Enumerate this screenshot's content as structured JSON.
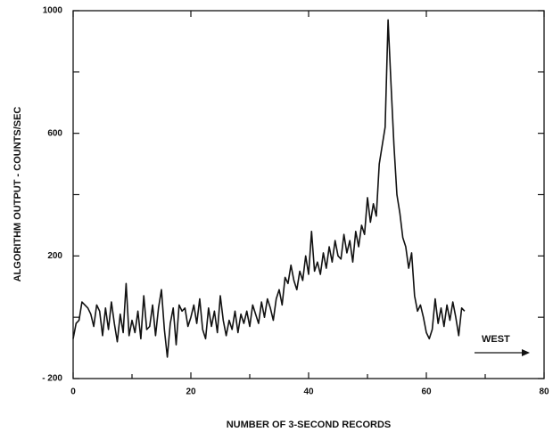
{
  "chart_data": {
    "type": "line",
    "xlabel": "NUMBER OF 3-SECOND RECORDS",
    "ylabel": "ALGORITHM OUTPUT - COUNTS/SEC",
    "annotation": "WEST",
    "xlim": [
      0,
      80
    ],
    "xticks": [
      0,
      20,
      40,
      60,
      80
    ],
    "xminorticks": [
      10,
      30,
      50,
      70
    ],
    "ylim": [
      -200,
      1000
    ],
    "yticks": [
      {
        "value": -200,
        "label": "- 200"
      },
      200,
      600,
      1000
    ],
    "yminorticks": [
      0,
      400,
      800
    ],
    "color": "#111111",
    "x": [
      0,
      0.5,
      1,
      1.5,
      2,
      2.5,
      3,
      3.5,
      4,
      4.5,
      5,
      5.5,
      6,
      6.5,
      7,
      7.5,
      8,
      8.5,
      9,
      9.5,
      10,
      10.5,
      11,
      11.5,
      12,
      12.5,
      13,
      13.5,
      14,
      14.5,
      15,
      15.5,
      16,
      16.5,
      17,
      17.5,
      18,
      18.5,
      19,
      19.5,
      20,
      20.5,
      21,
      21.5,
      22,
      22.5,
      23,
      23.5,
      24,
      24.5,
      25,
      25.5,
      26,
      26.5,
      27,
      27.5,
      28,
      28.5,
      29,
      29.5,
      30,
      30.5,
      31,
      31.5,
      32,
      32.5,
      33,
      33.5,
      34,
      34.5,
      35,
      35.5,
      36,
      36.5,
      37,
      37.5,
      38,
      38.5,
      39,
      39.5,
      40,
      40.5,
      41,
      41.5,
      42,
      42.5,
      43,
      43.5,
      44,
      44.5,
      45,
      45.5,
      46,
      46.5,
      47,
      47.5,
      48,
      48.5,
      49,
      49.5,
      50,
      50.5,
      51,
      51.5,
      52,
      52.5,
      53,
      53.5,
      54,
      54.5,
      55,
      55.5,
      56,
      56.5,
      57,
      57.5,
      58,
      58.5,
      59,
      59.5,
      60,
      60.5,
      61,
      61.5,
      62,
      62.5,
      63,
      63.5,
      64,
      64.5,
      65,
      65.5,
      66,
      66.5
    ],
    "values": [
      -70,
      -20,
      -10,
      50,
      40,
      30,
      10,
      -30,
      40,
      20,
      -60,
      30,
      -40,
      50,
      -20,
      -80,
      10,
      -50,
      110,
      -60,
      -10,
      -50,
      20,
      -70,
      70,
      -40,
      -30,
      40,
      -60,
      30,
      90,
      -40,
      -130,
      -20,
      30,
      -90,
      40,
      20,
      30,
      -30,
      0,
      40,
      -20,
      60,
      -40,
      -70,
      30,
      -30,
      20,
      -50,
      70,
      -10,
      -60,
      -10,
      -40,
      20,
      -50,
      10,
      -20,
      20,
      -30,
      40,
      10,
      -20,
      50,
      0,
      60,
      30,
      -10,
      60,
      90,
      40,
      130,
      110,
      170,
      120,
      90,
      150,
      120,
      200,
      140,
      280,
      150,
      180,
      140,
      210,
      160,
      230,
      180,
      250,
      200,
      190,
      270,
      210,
      250,
      180,
      280,
      230,
      300,
      270,
      390,
      310,
      370,
      330,
      500,
      560,
      620,
      970,
      760,
      560,
      400,
      340,
      260,
      230,
      160,
      210,
      70,
      20,
      40,
      0,
      -50,
      -70,
      -40,
      60,
      -20,
      30,
      -30,
      40,
      -10,
      50,
      0,
      -60,
      30,
      20
    ]
  }
}
